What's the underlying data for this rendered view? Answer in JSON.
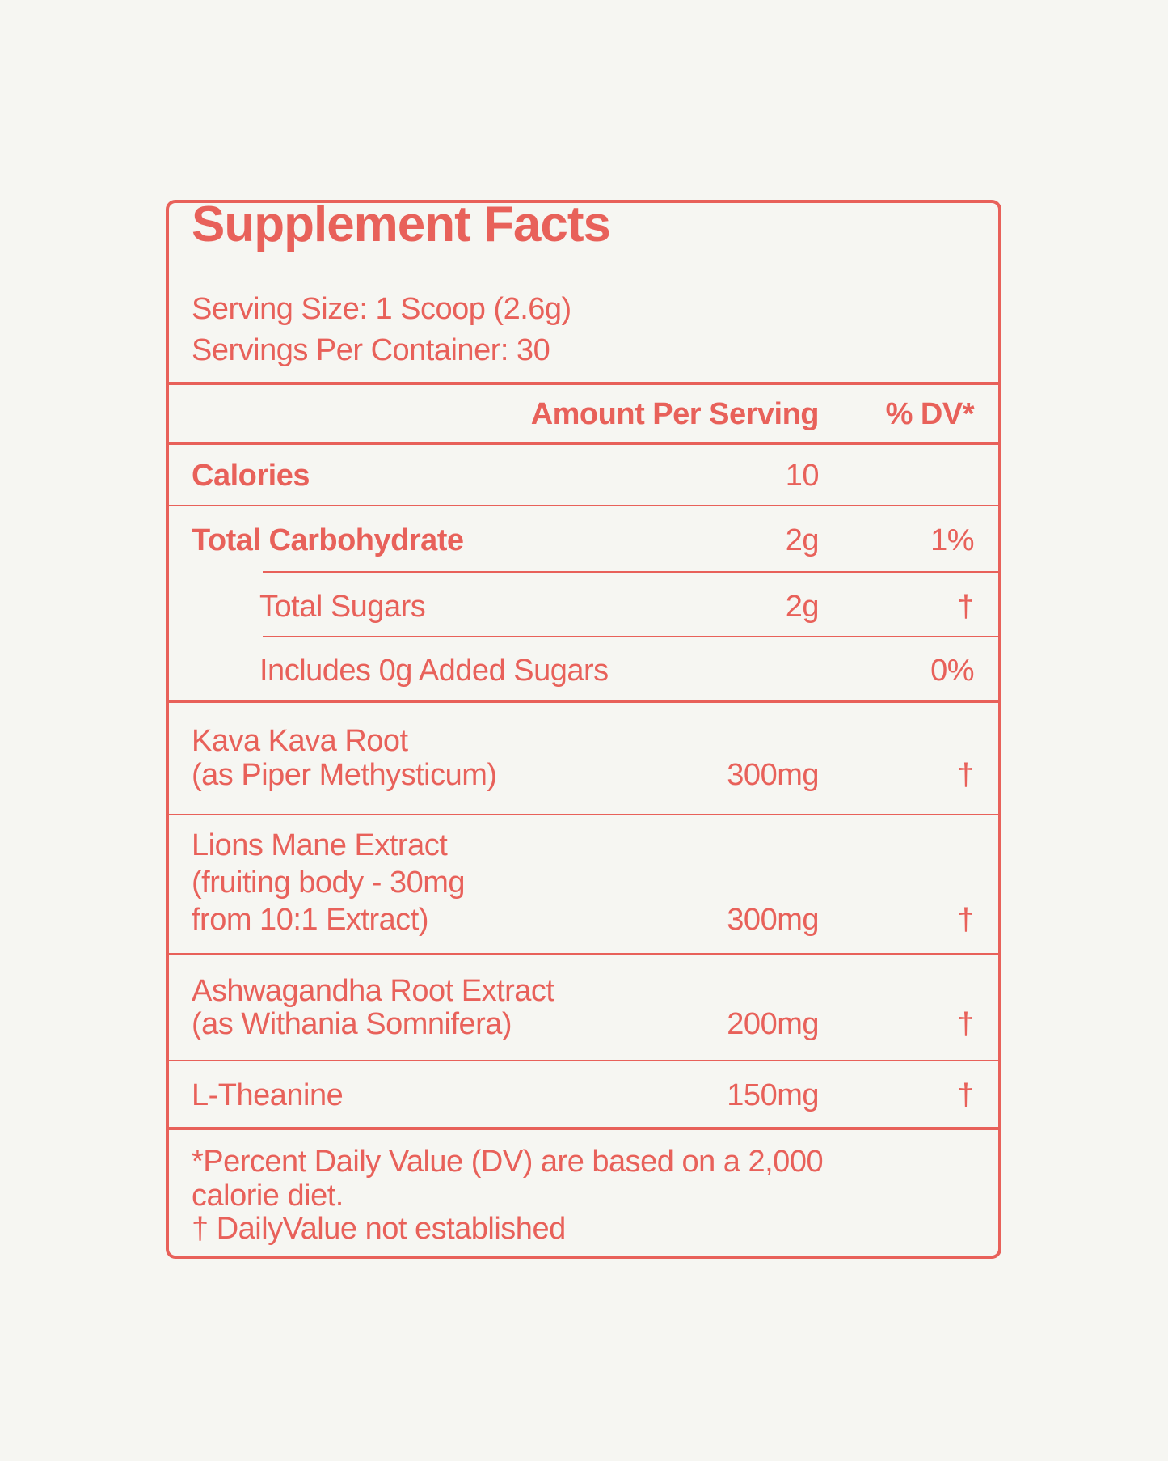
{
  "title": "Supplement Facts",
  "serving_size": "Serving Size: 1 Scoop (2.6g)",
  "servings_per_container": "Servings Per Container: 30",
  "header": {
    "amount": "Amount Per Serving",
    "dv": "% DV*"
  },
  "rows": [
    {
      "name": "Calories",
      "amount": "10",
      "dv": ""
    },
    {
      "name": "Total Carbohydrate",
      "amount": "2g",
      "dv": "1%"
    },
    {
      "name": "Total Sugars",
      "amount": "2g",
      "dv": "†"
    },
    {
      "name": "Includes 0g Added Sugars",
      "amount": "",
      "dv": "0%"
    }
  ],
  "ingredients": [
    {
      "lines": [
        "Kava Kava Root",
        "(as Piper Methysticum)"
      ],
      "amount": "300mg",
      "dv": "†"
    },
    {
      "lines": [
        "Lions Mane Extract",
        "(fruiting body - 30mg",
        "from 10:1 Extract)"
      ],
      "amount": "300mg",
      "dv": "†"
    },
    {
      "lines": [
        "Ashwagandha Root Extract",
        "(as Withania Somnifera)"
      ],
      "amount": "200mg",
      "dv": "†"
    },
    {
      "lines": [
        "L-Theanine"
      ],
      "amount": "150mg",
      "dv": "†"
    }
  ],
  "footnotes": [
    "*Percent Daily Value (DV) are based on a 2,000",
    "calorie diet.",
    "† DailyValue not established"
  ],
  "colors": {
    "accent": "#e8615a",
    "background": "#f6f6f2"
  }
}
